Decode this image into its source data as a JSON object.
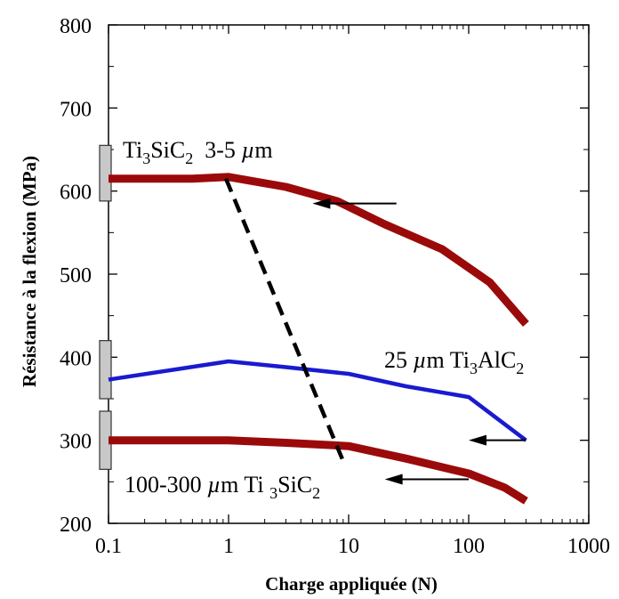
{
  "chart_data": {
    "type": "line",
    "xlabel": "Charge appliquée (N)",
    "ylabel": "Résistance à la flexion (MPa)",
    "x_scale": "log",
    "xlim": [
      0.1,
      1000
    ],
    "ylim": [
      200,
      800
    ],
    "x_tick_labels": [
      "0.1",
      "1",
      "10",
      "100",
      "1000"
    ],
    "y_tick_labels": [
      "200",
      "300",
      "400",
      "500",
      "600",
      "700",
      "800"
    ],
    "grid": false,
    "colors": {
      "ti3sic2_fine": "#9b0a0a",
      "ti3alc2": "#1a1ad0",
      "ti3sic2_coarse": "#9b0a0a",
      "dashed": "#000000",
      "arrow": "#000000",
      "bar": "#c8c8c8"
    },
    "series": [
      {
        "name": "Ti3SiC2 3-5 µm",
        "x": [
          0.1,
          0.5,
          1,
          3,
          8,
          20,
          60,
          150,
          300
        ],
        "y": [
          615,
          615,
          617,
          605,
          588,
          560,
          530,
          490,
          440
        ]
      },
      {
        "name": "25 µm Ti3AlC2",
        "x": [
          0.1,
          1,
          3,
          10,
          30,
          100,
          300
        ],
        "y": [
          373,
          395,
          388,
          380,
          365,
          352,
          300
        ]
      },
      {
        "name": "100-300 µm Ti3SiC2",
        "x": [
          0.1,
          1,
          3,
          10,
          30,
          100,
          200,
          300
        ],
        "y": [
          300,
          300,
          297,
          293,
          278,
          260,
          243,
          227
        ]
      }
    ],
    "dashed_line": {
      "x": [
        0.95,
        9
      ],
      "y": [
        615,
        275
      ]
    },
    "initial_strength_bars": [
      {
        "y_low": 588,
        "y_high": 655
      },
      {
        "y_low": 350,
        "y_high": 420
      },
      {
        "y_low": 265,
        "y_high": 335
      }
    ],
    "arrows": [
      {
        "x_from": 25,
        "x_to": 5,
        "y": 585
      },
      {
        "x_from": 300,
        "x_to": 100,
        "y": 300
      },
      {
        "x_from": 100,
        "x_to": 20,
        "y": 253
      }
    ],
    "annotations": [
      {
        "id": "fine",
        "parts": [
          "Ti",
          "3",
          "SiC",
          "2",
          "  3-5 ",
          "µ",
          "m"
        ]
      },
      {
        "id": "alc",
        "parts": [
          "25 ",
          "µ",
          "m Ti",
          "3",
          "AlC",
          "2"
        ]
      },
      {
        "id": "coarse",
        "parts": [
          "100-300 ",
          "µ",
          "m Ti ",
          "3",
          "SiC",
          "2"
        ]
      }
    ]
  }
}
